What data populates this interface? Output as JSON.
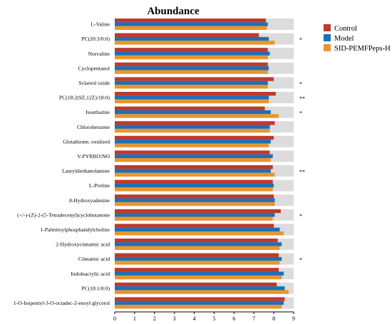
{
  "chart_data": {
    "type": "bar",
    "orientation": "horizontal",
    "title": "Abundance",
    "xlim": [
      0,
      9
    ],
    "xticks": [
      "0",
      "1",
      "2",
      "3",
      "4",
      "5",
      "6",
      "7",
      "8",
      "9"
    ],
    "background_bar_value": 9,
    "categories": [
      "L-Valine",
      "PC(20:3/0:0)",
      "Norvaline",
      "Cyclopentanol",
      "Sclareol oxide",
      "PC(18:2(9Z,12Z)/18:0)",
      "Isoetharine",
      "Chlorobenzene",
      "Glutathione, oxidized",
      "V-PYRRO/NO",
      "Lauryldiethanolamine",
      "L-Proline",
      "8-Hydroxyadenine",
      "(+/-)-(Z)-2-(5-Tetradecenyl)cyclobutanone",
      "1-Palmitoylphosphatidylcholine",
      "2-Hydroxycinnamic acid",
      "Cinnamic acid",
      "Indoleacrylic acid",
      "PC(18:1/0:0)",
      "1-O-Isopentyl-3-O-octadec-2-enoyl glycerol"
    ],
    "significance": [
      "",
      "*",
      "",
      "",
      "*",
      "**",
      "*",
      "",
      "",
      "",
      "**",
      "",
      "",
      "*",
      "",
      "",
      "*",
      "",
      "",
      ""
    ],
    "series": [
      {
        "name": "Control",
        "color": "#c0392b",
        "values": [
          7.6,
          7.25,
          7.7,
          7.7,
          8.0,
          8.1,
          7.55,
          8.05,
          8.0,
          7.8,
          7.95,
          7.95,
          8.0,
          8.35,
          8.0,
          8.2,
          8.25,
          8.25,
          8.15,
          8.55
        ]
      },
      {
        "name": "Model",
        "color": "#1f6fb4",
        "values": [
          7.7,
          7.75,
          7.8,
          7.75,
          7.7,
          7.75,
          7.85,
          7.8,
          7.85,
          7.95,
          7.85,
          8.0,
          8.05,
          8.05,
          8.3,
          8.4,
          8.4,
          8.5,
          8.55,
          8.5
        ]
      },
      {
        "name": "SID-PEMFPeps-H",
        "color": "#e8962e",
        "values": [
          7.65,
          8.05,
          7.7,
          7.7,
          7.7,
          7.75,
          8.25,
          7.8,
          7.75,
          7.85,
          8.05,
          7.95,
          8.05,
          7.95,
          8.5,
          8.3,
          8.3,
          8.4,
          8.75,
          8.4
        ]
      }
    ],
    "legend": {
      "position": "top-right"
    },
    "grid": false
  }
}
